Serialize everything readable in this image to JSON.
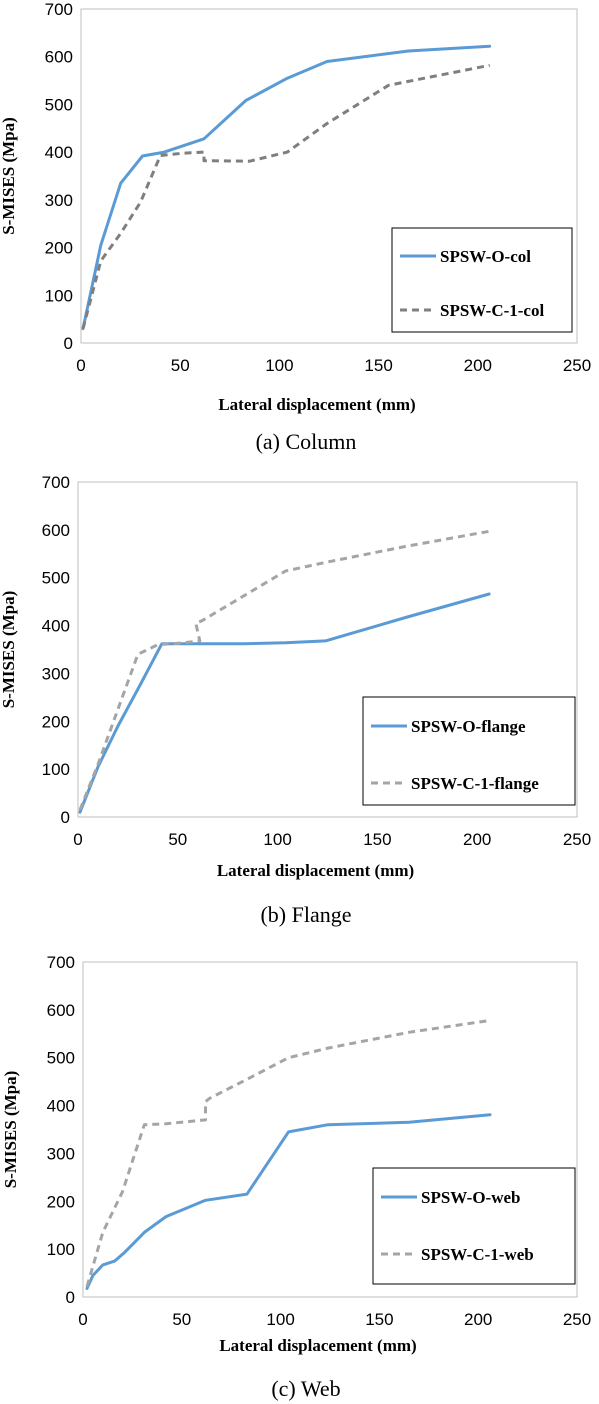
{
  "chart_data": [
    {
      "type": "line",
      "caption": "(a) Column",
      "xlabel": "Lateral displacement  (mm)",
      "ylabel": "S-MISES  (Mpa)",
      "xlim": [
        0,
        250
      ],
      "ylim": [
        0,
        700
      ],
      "xticks": [
        0,
        50,
        100,
        150,
        200,
        250
      ],
      "yticks": [
        0,
        100,
        200,
        300,
        400,
        500,
        600,
        700
      ],
      "grid": false,
      "legend_position": "lower-right",
      "series": [
        {
          "name": "SPSW-O-col",
          "color": "#5b9bd5",
          "style": "solid",
          "x": [
            1,
            10,
            20,
            31,
            42,
            62,
            83,
            104,
            124,
            165,
            206
          ],
          "y": [
            30,
            205,
            335,
            392,
            400,
            428,
            508,
            555,
            590,
            612,
            622
          ]
        },
        {
          "name": "SPSW-C-1-col",
          "color": "#7f7f7f",
          "style": "dash",
          "x": [
            1,
            10,
            20,
            30,
            40,
            52,
            62,
            62,
            85,
            104,
            124,
            155,
            206
          ],
          "y": [
            30,
            172,
            230,
            295,
            393,
            398,
            400,
            382,
            381,
            400,
            460,
            540,
            582
          ]
        }
      ]
    },
    {
      "type": "line",
      "caption": "(b) Flange",
      "xlabel": "Lateral displacement  (mm)",
      "ylabel": "S-MISES  (Mpa)",
      "xlim": [
        0,
        250
      ],
      "ylim": [
        0,
        700
      ],
      "xticks": [
        0,
        50,
        100,
        150,
        200,
        250
      ],
      "yticks": [
        0,
        100,
        200,
        300,
        400,
        500,
        600,
        700
      ],
      "grid": false,
      "legend_position": "lower-right",
      "series": [
        {
          "name": "SPSW-O-flange",
          "color": "#5b9bd5",
          "style": "solid",
          "x": [
            1,
            10,
            20,
            31,
            42,
            62,
            83,
            104,
            124,
            165,
            206
          ],
          "y": [
            10,
            105,
            190,
            275,
            362,
            362,
            362,
            364,
            368,
            418,
            466
          ]
        },
        {
          "name": "SPSW-C-1-flange",
          "color": "#a5a5a5",
          "style": "dash",
          "x": [
            1,
            10,
            20,
            30,
            40,
            50,
            59,
            61,
            59,
            62,
            83,
            104,
            124,
            165,
            206
          ],
          "y": [
            15,
            110,
            225,
            340,
            360,
            363,
            367,
            368,
            405,
            410,
            462,
            514,
            532,
            566,
            597
          ]
        }
      ]
    },
    {
      "type": "line",
      "caption": "(c) Web",
      "xlabel": "Lateral displacement  (mm)",
      "ylabel": "S-MISES  (Mpa)",
      "xlim": [
        0,
        250
      ],
      "ylim": [
        0,
        700
      ],
      "xticks": [
        0,
        50,
        100,
        150,
        200,
        250
      ],
      "yticks": [
        0,
        100,
        200,
        300,
        400,
        500,
        600,
        700
      ],
      "grid": false,
      "legend_position": "lower-right",
      "series": [
        {
          "name": "SPSW-O-web",
          "color": "#5b9bd5",
          "style": "solid",
          "x": [
            2,
            5,
            10,
            16,
            21,
            31,
            42,
            62,
            83,
            104,
            124,
            165,
            206
          ],
          "y": [
            18,
            45,
            67,
            75,
            93,
            135,
            168,
            202,
            215,
            345,
            360,
            365,
            381
          ]
        },
        {
          "name": "SPSW-C-1-web",
          "color": "#a5a5a5",
          "style": "dash",
          "x": [
            2,
            10,
            20,
            31,
            42,
            52,
            62,
            62,
            64,
            83,
            104,
            124,
            165,
            206
          ],
          "y": [
            22,
            135,
            220,
            360,
            362,
            366,
            370,
            408,
            415,
            455,
            500,
            520,
            553,
            578
          ]
        }
      ]
    }
  ]
}
